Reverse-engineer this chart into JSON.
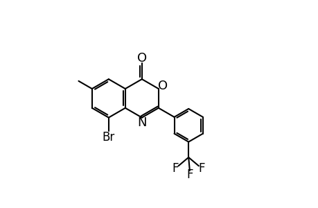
{
  "bg_color": "#ffffff",
  "bond_color": "#000000",
  "bond_width": 1.5,
  "font_size_label": 12,
  "figsize": [
    4.6,
    3.0
  ],
  "dpi": 100,
  "xlim": [
    0,
    9.2
  ],
  "ylim": [
    0,
    6.0
  ]
}
